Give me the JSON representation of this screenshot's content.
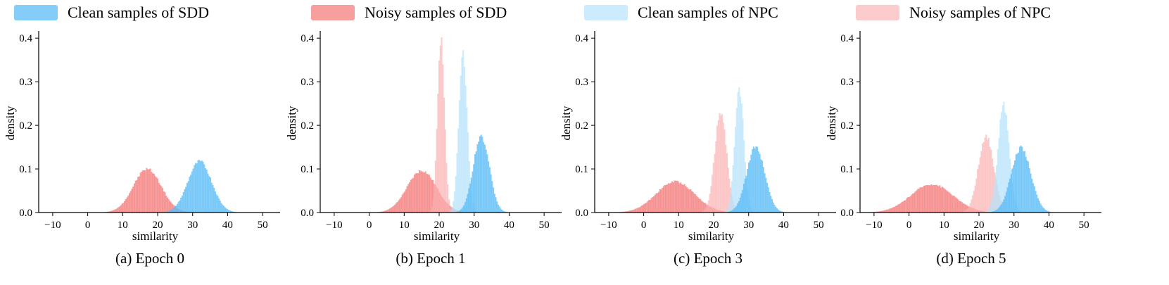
{
  "legend": {
    "items": [
      {
        "label": "Clean samples of SDD",
        "color": "#5bbcf7",
        "opacity": 0.75
      },
      {
        "label": "Noisy samples of SDD",
        "color": "#f26b6b",
        "opacity": 0.65
      },
      {
        "label": "Clean samples of NPC",
        "color": "#b7e2fb",
        "opacity": 0.7
      },
      {
        "label": "Noisy samples of NPC",
        "color": "#fbb0b0",
        "opacity": 0.65
      }
    ]
  },
  "chart_data": [
    {
      "type": "histogram",
      "caption": "(a) Epoch 0",
      "xlabel": "similarity",
      "ylabel": "density",
      "xlim": [
        -14,
        55
      ],
      "ylim": [
        0,
        0.41
      ],
      "xticks": [
        -10,
        0,
        10,
        20,
        30,
        40,
        50
      ],
      "yticks": [
        0.0,
        0.1,
        0.2,
        0.3,
        0.4
      ],
      "series": [
        {
          "name": "Noisy samples of SDD",
          "shape": "gaussian",
          "mean": 17,
          "std": 4.0,
          "peak": 0.1
        },
        {
          "name": "Clean samples of SDD",
          "shape": "gaussian",
          "mean": 32,
          "std": 3.4,
          "peak": 0.117
        }
      ]
    },
    {
      "type": "histogram",
      "caption": "(b) Epoch 1",
      "xlabel": "similarity",
      "ylabel": "density",
      "xlim": [
        -14,
        55
      ],
      "ylim": [
        0,
        0.41
      ],
      "xticks": [
        -10,
        0,
        10,
        20,
        30,
        40,
        50
      ],
      "yticks": [
        0.0,
        0.1,
        0.2,
        0.3,
        0.4
      ],
      "series": [
        {
          "name": "Noisy samples of SDD",
          "shape": "gaussian",
          "mean": 15,
          "std": 4.2,
          "peak": 0.096
        },
        {
          "name": "Noisy samples of NPC",
          "shape": "gaussian",
          "mean": 20.5,
          "std": 1.0,
          "peak": 0.4
        },
        {
          "name": "Clean samples of NPC",
          "shape": "gaussian",
          "mean": 26.8,
          "std": 1.2,
          "peak": 0.365
        },
        {
          "name": "Clean samples of SDD",
          "shape": "gaussian",
          "mean": 32,
          "std": 2.3,
          "peak": 0.175
        }
      ]
    },
    {
      "type": "histogram",
      "caption": "(c) Epoch 3",
      "xlabel": "similarity",
      "ylabel": "density",
      "xlim": [
        -14,
        55
      ],
      "ylim": [
        0,
        0.41
      ],
      "xticks": [
        -10,
        0,
        10,
        20,
        30,
        40,
        50
      ],
      "yticks": [
        0.0,
        0.1,
        0.2,
        0.3,
        0.4
      ],
      "series": [
        {
          "name": "Noisy samples of SDD",
          "shape": "gaussian",
          "mean": 9,
          "std": 5.5,
          "peak": 0.071
        },
        {
          "name": "Noisy samples of NPC",
          "shape": "gaussian",
          "mean": 22,
          "std": 1.7,
          "peak": 0.23
        },
        {
          "name": "Clean samples of NPC",
          "shape": "gaussian",
          "mean": 27.3,
          "std": 1.3,
          "peak": 0.285
        },
        {
          "name": "Clean samples of SDD",
          "shape": "gaussian",
          "mean": 32,
          "std": 2.6,
          "peak": 0.15
        }
      ]
    },
    {
      "type": "histogram",
      "caption": "(d) Epoch 5",
      "xlabel": "similarity",
      "ylabel": "density",
      "xlim": [
        -14,
        55
      ],
      "ylim": [
        0,
        0.41
      ],
      "xticks": [
        -10,
        0,
        10,
        20,
        30,
        40,
        50
      ],
      "yticks": [
        0.0,
        0.1,
        0.2,
        0.3,
        0.4
      ],
      "series": [
        {
          "name": "Noisy samples of SDD",
          "shape": "gaussian",
          "mean": 6.5,
          "std": 6.0,
          "peak": 0.065
        },
        {
          "name": "Noisy samples of NPC",
          "shape": "gaussian",
          "mean": 22,
          "std": 2.2,
          "peak": 0.175
        },
        {
          "name": "Clean samples of NPC",
          "shape": "gaussian",
          "mean": 27,
          "std": 1.6,
          "peak": 0.245
        },
        {
          "name": "Clean samples of SDD",
          "shape": "gaussian",
          "mean": 32,
          "std": 2.8,
          "peak": 0.148
        }
      ]
    }
  ]
}
